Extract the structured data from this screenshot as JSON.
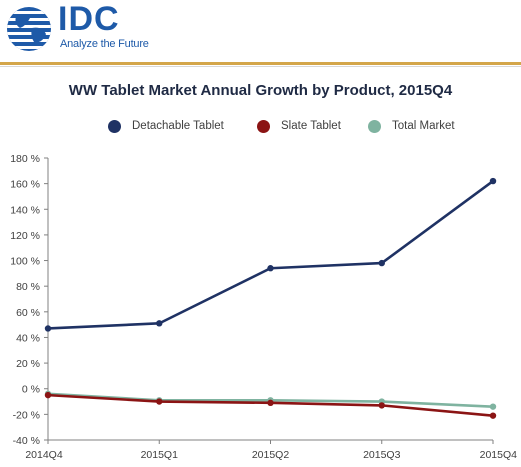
{
  "brand": {
    "name": "IDC",
    "tagline": "Analyze the Future",
    "primary_color": "#1e5aa8",
    "accent_color": "#d4a64a"
  },
  "chart_data": {
    "type": "line",
    "title": "WW Tablet Market Annual Growth by Product, 2015Q4",
    "categories": [
      "2014Q4",
      "2015Q1",
      "2015Q2",
      "2015Q3",
      "2015Q4"
    ],
    "series": [
      {
        "name": "Detachable Tablet",
        "color": "#1f3264",
        "values": [
          47,
          51,
          94,
          98,
          162
        ]
      },
      {
        "name": "Slate Tablet",
        "color": "#8b1414",
        "values": [
          -5,
          -10,
          -11,
          -13,
          -21
        ]
      },
      {
        "name": "Total Market",
        "color": "#7fb3a0",
        "values": [
          -4,
          -9,
          -9,
          -10,
          -14
        ]
      }
    ],
    "ylim": [
      -40,
      180
    ],
    "yticks": [
      -40,
      -20,
      0,
      20,
      40,
      60,
      80,
      100,
      120,
      140,
      160,
      180
    ],
    "ytick_labels": [
      "-40 %",
      "-20 %",
      "0 %",
      "20 %",
      "40 %",
      "60 %",
      "80 %",
      "100 %",
      "120 %",
      "140 %",
      "160 %",
      "180 %"
    ],
    "xlabel": "",
    "ylabel": "",
    "legend_position": "top",
    "grid": false
  }
}
